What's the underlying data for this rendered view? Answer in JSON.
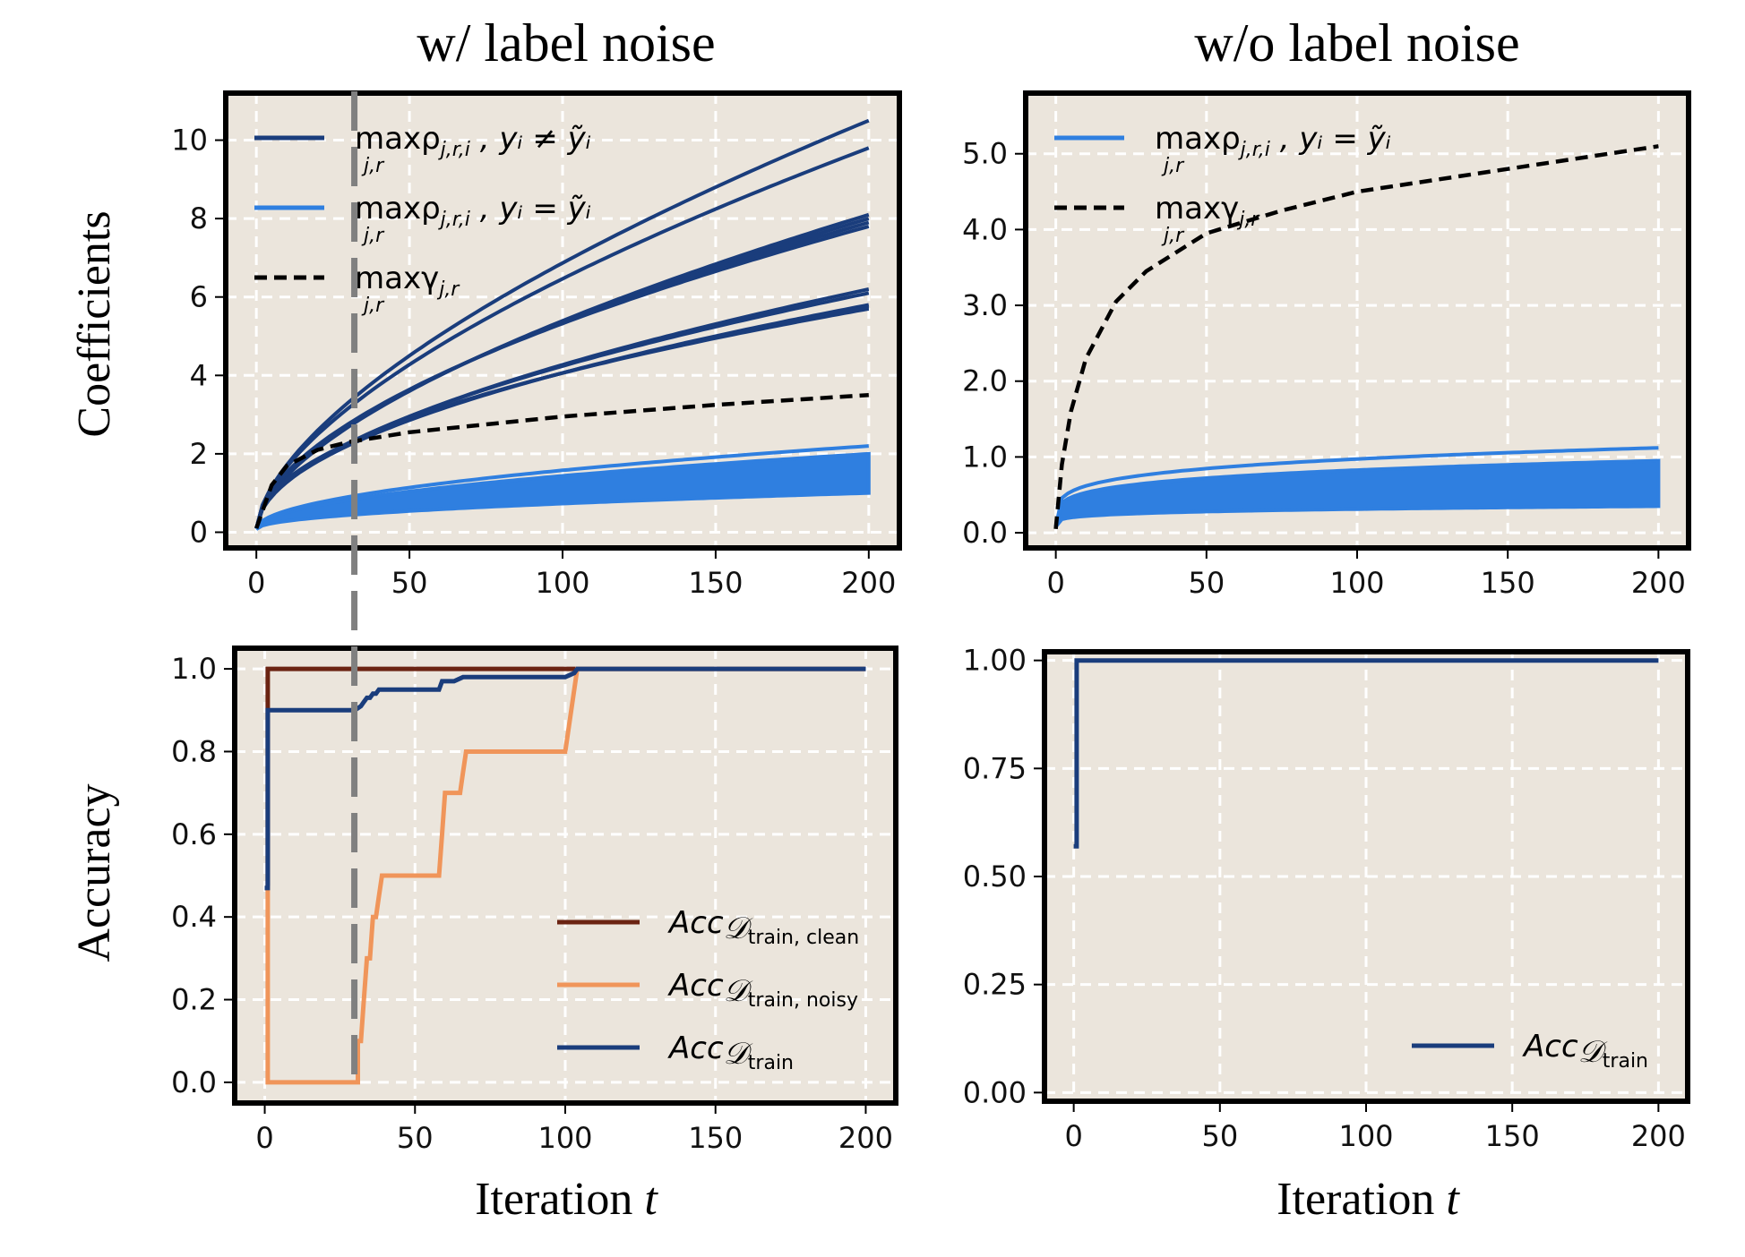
{
  "colors": {
    "panel_bg": "#ebe5dc",
    "grid": "#ffffff",
    "frame": "#000000",
    "dark_blue": "#1a3d7c",
    "light_blue": "#2f7fe0",
    "black_dash": "#000000",
    "clean": "#6b2312",
    "noisy": "#f0955a",
    "train": "#1a3d7c",
    "vline": "#808080"
  },
  "titles": {
    "left": "w/ label noise",
    "right": "w/o label noise"
  },
  "row_labels": {
    "top": "Coefficients",
    "bottom": "Accuracy"
  },
  "xlabel": {
    "left_main": "Iteration ",
    "left_var": "t",
    "right_main": "Iteration ",
    "right_var": "t"
  },
  "legends": {
    "tl": [
      {
        "main": "maxρ",
        "sub": "j,r,i",
        "tail": ", yᵢ ≠ ỹᵢ",
        "under": "j,r"
      },
      {
        "main": "maxρ",
        "sub": "j,r,i",
        "tail": ", yᵢ = ỹᵢ",
        "under": "j,r"
      },
      {
        "main": "maxγ",
        "sub": "j,r",
        "tail": "",
        "under": "j,r"
      }
    ],
    "tr": [
      {
        "main": "maxρ",
        "sub": "j,r,i",
        "tail": ", yᵢ = ỹᵢ",
        "under": "j,r"
      },
      {
        "main": "maxγ",
        "sub": "j,r",
        "tail": "",
        "under": "j,r"
      }
    ],
    "bl": [
      {
        "main": "Acc",
        "sub": "train, clean"
      },
      {
        "main": "Acc",
        "sub": "train, noisy"
      },
      {
        "main": "Acc",
        "sub": "train"
      }
    ],
    "br": [
      {
        "main": "Acc",
        "sub": "train"
      }
    ],
    "script_d": "𝒟"
  },
  "chart_data": [
    {
      "panel": "top-left",
      "type": "line",
      "title": "w/ label noise",
      "ylabel": "Coefficients",
      "xlim": [
        -10,
        210
      ],
      "ylim": [
        -0.4,
        11.2
      ],
      "xticks": [
        0,
        50,
        100,
        150,
        200
      ],
      "yticks": [
        0,
        2,
        4,
        6,
        8,
        10
      ],
      "ytick_labels": [
        "0",
        "2",
        "4",
        "6",
        "8",
        "10"
      ],
      "grid": true,
      "legend": "top-left",
      "vline_x": 32,
      "series": [
        {
          "name": "maxρ j,r,i , yᵢ ≠ ỹᵢ",
          "style": "dark_blue",
          "group": "noisy",
          "curves_end": [
            10.5,
            9.8,
            8.1,
            8.0,
            7.9,
            7.8,
            6.2,
            6.1,
            5.8,
            5.75,
            5.7
          ],
          "x_end": 200
        },
        {
          "name": "maxρ j,r,i , yᵢ = ỹᵢ",
          "style": "light_blue",
          "group": "clean",
          "band_end": [
            1.0,
            2.0
          ],
          "upper_curve_end": 2.2,
          "x_end": 200
        },
        {
          "name": "maxγ j,r",
          "style": "black_dash",
          "group": "noise",
          "end": 3.5,
          "x": [
            0,
            5,
            10,
            20,
            30,
            50,
            100,
            150,
            200
          ],
          "y": [
            0.1,
            1.2,
            1.7,
            2.1,
            2.3,
            2.55,
            2.95,
            3.25,
            3.5
          ]
        }
      ]
    },
    {
      "panel": "top-right",
      "type": "line",
      "title": "w/o label noise",
      "xlim": [
        -10,
        210
      ],
      "ylim": [
        -0.2,
        5.8
      ],
      "xticks": [
        0,
        50,
        100,
        150,
        200
      ],
      "yticks": [
        0.0,
        1.0,
        2.0,
        3.0,
        4.0,
        5.0
      ],
      "ytick_labels": [
        "0.0",
        "1.0",
        "2.0",
        "3.0",
        "4.0",
        "5.0"
      ],
      "grid": true,
      "legend": "top-left",
      "series": [
        {
          "name": "maxρ j,r,i , yᵢ = ỹᵢ",
          "style": "light_blue",
          "band_end": [
            0.35,
            0.95
          ],
          "upper_curve_end": 1.12,
          "x_end": 200
        },
        {
          "name": "maxγ j,r",
          "style": "black_dash",
          "x": [
            0,
            2,
            5,
            10,
            20,
            30,
            50,
            75,
            100,
            150,
            200
          ],
          "y": [
            0.05,
            0.9,
            1.6,
            2.3,
            3.05,
            3.45,
            3.95,
            4.25,
            4.5,
            4.8,
            5.1
          ]
        }
      ]
    },
    {
      "panel": "bottom-left",
      "type": "line",
      "ylabel": "Accuracy",
      "xlabel": "Iteration t",
      "xlim": [
        -10,
        210
      ],
      "ylim": [
        -0.05,
        1.05
      ],
      "xticks": [
        0,
        50,
        100,
        150,
        200
      ],
      "yticks": [
        0.0,
        0.2,
        0.4,
        0.6,
        0.8,
        1.0
      ],
      "ytick_labels": [
        "0.0",
        "0.2",
        "0.4",
        "0.6",
        "0.8",
        "1.0"
      ],
      "grid": true,
      "legend": "lower-right",
      "vline_x": 30,
      "series": [
        {
          "name": "Acc train, clean",
          "style": "clean",
          "x": [
            0,
            1,
            1,
            103,
            200
          ],
          "y": [
            0.47,
            0.47,
            1.0,
            1.0,
            1.0
          ]
        },
        {
          "name": "Acc train, noisy",
          "style": "noisy",
          "x": [
            0,
            1,
            1,
            29,
            30,
            31,
            31,
            32,
            33,
            34,
            35,
            36,
            37,
            38,
            39,
            40,
            58,
            59,
            60,
            62,
            63,
            65,
            66,
            67,
            68,
            100,
            102,
            104,
            105,
            200
          ],
          "y": [
            0.47,
            0.47,
            0.0,
            0.0,
            0.0,
            0.0,
            0.1,
            0.1,
            0.2,
            0.3,
            0.3,
            0.4,
            0.4,
            0.45,
            0.5,
            0.5,
            0.5,
            0.6,
            0.7,
            0.7,
            0.7,
            0.7,
            0.75,
            0.8,
            0.8,
            0.8,
            0.9,
            1.0,
            1.0,
            1.0
          ]
        },
        {
          "name": "Acc train",
          "style": "train",
          "x": [
            0,
            1,
            1,
            29,
            30,
            32,
            33,
            34,
            35,
            36,
            37,
            38,
            40,
            58,
            59,
            60,
            63,
            66,
            67,
            70,
            100,
            103,
            104,
            200
          ],
          "y": [
            0.47,
            0.47,
            0.9,
            0.9,
            0.9,
            0.91,
            0.92,
            0.93,
            0.93,
            0.94,
            0.94,
            0.95,
            0.95,
            0.95,
            0.97,
            0.97,
            0.97,
            0.98,
            0.98,
            0.98,
            0.98,
            0.99,
            1.0,
            1.0
          ]
        }
      ]
    },
    {
      "panel": "bottom-right",
      "type": "line",
      "xlabel": "Iteration t",
      "xlim": [
        -10,
        210
      ],
      "ylim": [
        -0.02,
        1.02
      ],
      "xticks": [
        0,
        50,
        100,
        150,
        200
      ],
      "yticks": [
        0.0,
        0.25,
        0.5,
        0.75,
        1.0
      ],
      "ytick_labels": [
        "0.00",
        "0.25",
        "0.50",
        "0.75",
        "1.00"
      ],
      "grid": true,
      "legend": "lower-right",
      "series": [
        {
          "name": "Acc train",
          "style": "train",
          "x": [
            0,
            1,
            1,
            200
          ],
          "y": [
            0.57,
            0.57,
            1.0,
            1.0
          ]
        }
      ]
    }
  ]
}
